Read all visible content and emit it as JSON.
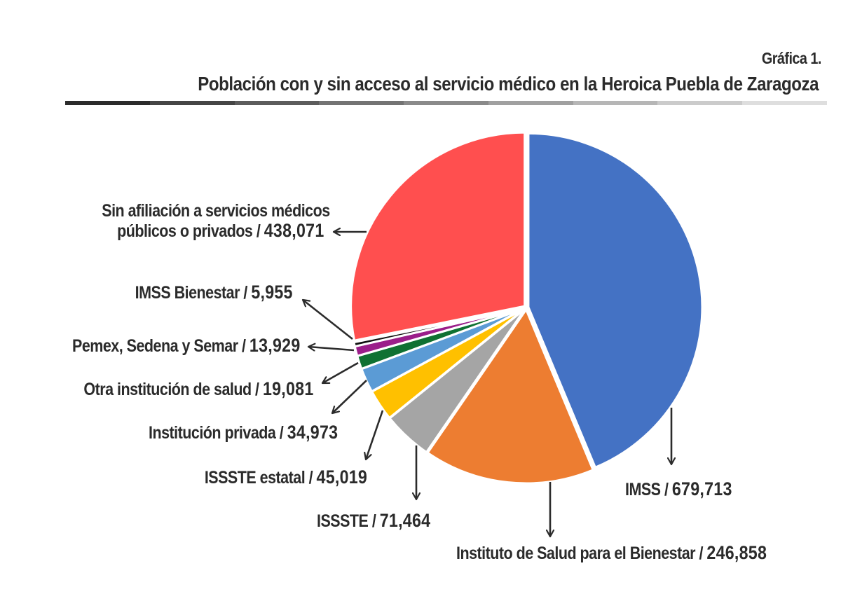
{
  "header": {
    "subtitle": "Gráfica 1.",
    "title": "Población con y sin acceso al servicio médico en la Heroica Puebla de Zaragoza",
    "rule_colors": [
      "#2b2b2b",
      "#454545",
      "#5c5c5c",
      "#737373",
      "#8a8a8a",
      "#a0a0a0",
      "#b6b6b6",
      "#cbcbcb",
      "#dedede"
    ]
  },
  "chart_data": {
    "type": "pie",
    "title": "Población con y sin acceso al servicio médico en la Heroica Puebla de Zaragoza",
    "subtitle": "Gráfica 1.",
    "start_angle": "12 o'clock, clockwise",
    "slices": [
      {
        "label": "IMSS",
        "value": 679713,
        "display": "679,713",
        "color": "#4472c4"
      },
      {
        "label": "Instituto de Salud para el Bienestar",
        "value": 246858,
        "display": "246,858",
        "color": "#ed7d31"
      },
      {
        "label": "ISSSTE",
        "value": 71464,
        "display": "71,464",
        "color": "#a5a5a5"
      },
      {
        "label": "ISSSTE estatal",
        "value": 45019,
        "display": "45,019",
        "color": "#ffc000"
      },
      {
        "label": "Institución privada",
        "value": 34973,
        "display": "34,973",
        "color": "#5b9bd5"
      },
      {
        "label": "Otra institución de salud",
        "value": 19081,
        "display": "19,081",
        "color": "#0f7132"
      },
      {
        "label": "Pemex, Sedena y Semar",
        "value": 13929,
        "display": "13,929",
        "color": "#9b1e8a"
      },
      {
        "label": "IMSS Bienestar",
        "value": 5955,
        "display": "5,955",
        "color": "#111111"
      },
      {
        "label": "Sin afiliación a servicios médicos públicos o privados",
        "value": 438071,
        "display": "438,071",
        "color": "#ff4f4f"
      }
    ]
  },
  "labels": {
    "sin_afiliacion_line1": "Sin afiliación a servicios médicos",
    "sin_afiliacion_line2": "públicos o privados / ",
    "sin_afiliacion_value": "438,071",
    "imss_bienestar": "IMSS Bienestar / ",
    "imss_bienestar_value": "5,955",
    "pemex": "Pemex, Sedena y Semar / ",
    "pemex_value": "13,929",
    "otra": "Otra institución de salud / ",
    "otra_value": "19,081",
    "privada": "Institución privada / ",
    "privada_value": "34,973",
    "issste_estatal": "ISSSTE estatal / ",
    "issste_estatal_value": "45,019",
    "issste": "ISSSTE / ",
    "issste_value": "71,464",
    "imss": "IMSS / ",
    "imss_value": "679,713",
    "insabi": "Instituto de Salud para el Bienestar / ",
    "insabi_value": "246,858"
  }
}
